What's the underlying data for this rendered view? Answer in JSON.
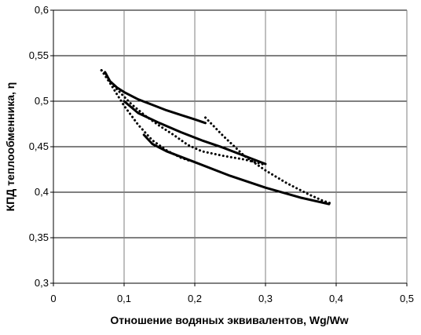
{
  "chart_data": {
    "type": "line",
    "title": "",
    "xlabel": "Отношение водяных эквивалентов, Wg/Ww",
    "ylabel": "КПД теплообменника, η",
    "xlim": [
      0,
      0.5
    ],
    "ylim": [
      0.3,
      0.6
    ],
    "x_ticks": [
      0,
      0.1,
      0.2,
      0.3,
      0.4,
      0.5
    ],
    "x_tick_labels": [
      "0",
      "0,1",
      "0,2",
      "0,3",
      "0,4",
      "0,5"
    ],
    "y_ticks": [
      0.3,
      0.35,
      0.4,
      0.45,
      0.5,
      0.55,
      0.6
    ],
    "y_tick_labels": [
      "0,3",
      "0,35",
      "0,4",
      "0,45",
      "0,5",
      "0,55",
      "0,6"
    ],
    "grid": "horizontal",
    "legend": "none",
    "series": [
      {
        "style": "solid",
        "color": "#000000",
        "x": [
          0.073,
          0.08,
          0.09,
          0.1,
          0.12,
          0.14,
          0.16,
          0.18,
          0.2,
          0.215
        ],
        "y": [
          0.532,
          0.522,
          0.515,
          0.51,
          0.502,
          0.496,
          0.49,
          0.485,
          0.48,
          0.476
        ]
      },
      {
        "style": "solid",
        "color": "#000000",
        "x": [
          0.1,
          0.12,
          0.15,
          0.18,
          0.21,
          0.24,
          0.27,
          0.3
        ],
        "y": [
          0.5,
          0.487,
          0.476,
          0.466,
          0.457,
          0.449,
          0.44,
          0.431
        ]
      },
      {
        "style": "solid",
        "color": "#000000",
        "x": [
          0.128,
          0.14,
          0.16,
          0.2,
          0.25,
          0.3,
          0.35,
          0.39
        ],
        "y": [
          0.463,
          0.453,
          0.445,
          0.433,
          0.418,
          0.405,
          0.394,
          0.387
        ]
      },
      {
        "style": "dotted",
        "color": "#000000",
        "x": [
          0.068,
          0.08,
          0.1,
          0.12,
          0.14,
          0.16,
          0.18,
          0.195
        ],
        "y": [
          0.534,
          0.52,
          0.495,
          0.474,
          0.457,
          0.446,
          0.438,
          0.434
        ]
      },
      {
        "style": "dotted",
        "color": "#000000",
        "x": [
          0.068,
          0.09,
          0.11,
          0.13,
          0.15,
          0.17,
          0.19,
          0.21,
          0.24,
          0.27,
          0.3
        ],
        "y": [
          0.534,
          0.513,
          0.497,
          0.484,
          0.473,
          0.463,
          0.452,
          0.445,
          0.44,
          0.436,
          0.43
        ]
      },
      {
        "style": "dotted",
        "color": "#000000",
        "x": [
          0.215,
          0.24,
          0.27,
          0.3,
          0.33,
          0.36,
          0.38,
          0.395
        ],
        "y": [
          0.482,
          0.462,
          0.44,
          0.424,
          0.41,
          0.398,
          0.391,
          0.387
        ]
      }
    ]
  }
}
